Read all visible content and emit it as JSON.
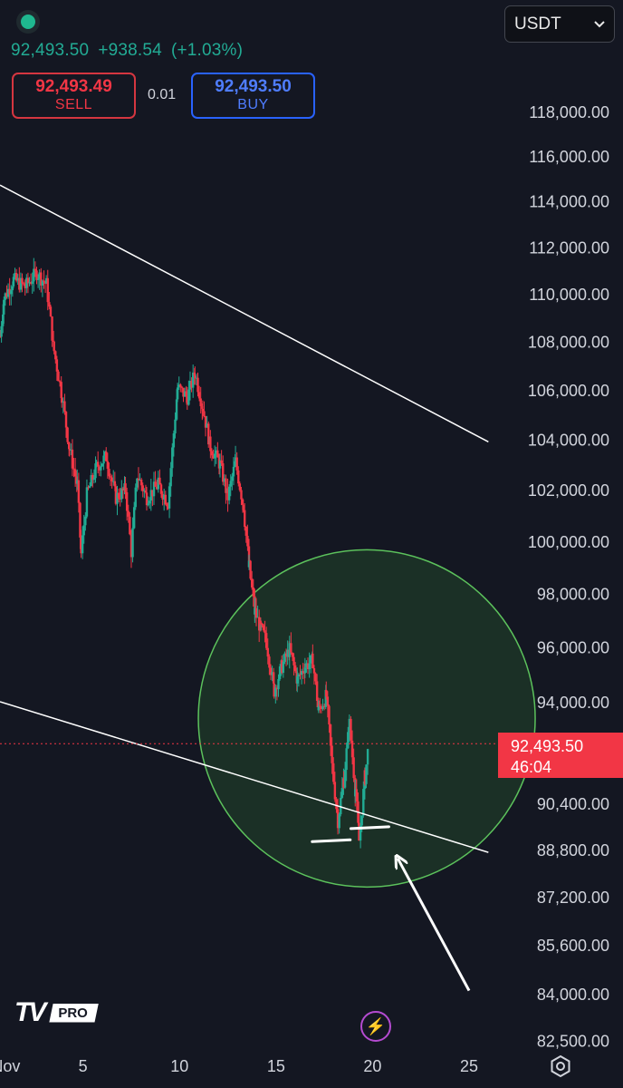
{
  "header": {
    "last_price": "92,493.50",
    "change": "+938.54",
    "change_pct": "(+1.03%)",
    "sell_price": "92,493.49",
    "sell_label": "SELL",
    "spread": "0.01",
    "buy_price": "92,493.50",
    "buy_label": "BUY",
    "currency": "USDT"
  },
  "price_tag": {
    "price": "92,493.50",
    "countdown": "46:04"
  },
  "branding": {
    "logo": "TV",
    "plan": "PRO"
  },
  "icons": {
    "symbol": "symbol-status-icon",
    "bolt": "lightning-icon",
    "settings": "settings-icon",
    "chevron": "chevron-down-icon"
  },
  "colors": {
    "up": "#22ab94",
    "down": "#f23645",
    "background": "#141722",
    "circle_fill": "#1e3a28",
    "circle_stroke": "#5cc25c",
    "annotation": "#ffffff"
  },
  "chart_data": {
    "type": "candlestick",
    "y_axis": {
      "scale": "log",
      "range": [
        82500,
        119000
      ],
      "tick_labels": [
        "118,000.00",
        "116,000.00",
        "114,000.00",
        "112,000.00",
        "110,000.00",
        "108,000.00",
        "106,000.00",
        "104,000.00",
        "102,000.00",
        "100,000.00",
        "98,000.00",
        "96,000.00",
        "94,000.00",
        "90,400.00",
        "88,800.00",
        "87,200.00",
        "85,600.00",
        "84,000.00",
        "82,500.00"
      ]
    },
    "x_axis": {
      "tick_labels": [
        "Nov",
        "5",
        "10",
        "15",
        "20",
        "25"
      ],
      "tick_days": [
        1,
        5,
        10,
        15,
        20,
        25
      ],
      "range_days": [
        0.7,
        26.5
      ]
    },
    "current_price": 92493.5,
    "price_path": [
      [
        0.7,
        108200
      ],
      [
        0.9,
        109800
      ],
      [
        1.4,
        110600
      ],
      [
        2.0,
        110300
      ],
      [
        2.6,
        110900
      ],
      [
        3.1,
        110400
      ],
      [
        3.5,
        107600
      ],
      [
        3.9,
        105800
      ],
      [
        4.3,
        103600
      ],
      [
        4.7,
        102200
      ],
      [
        4.9,
        99500
      ],
      [
        5.2,
        101800
      ],
      [
        5.7,
        102900
      ],
      [
        6.2,
        103300
      ],
      [
        6.7,
        101700
      ],
      [
        7.2,
        102000
      ],
      [
        7.5,
        99600
      ],
      [
        7.8,
        102600
      ],
      [
        8.3,
        101700
      ],
      [
        8.9,
        102200
      ],
      [
        9.4,
        101500
      ],
      [
        9.9,
        106100
      ],
      [
        10.4,
        105700
      ],
      [
        10.8,
        106700
      ],
      [
        11.2,
        105300
      ],
      [
        11.6,
        103700
      ],
      [
        12.1,
        103000
      ],
      [
        12.5,
        101700
      ],
      [
        12.9,
        103100
      ],
      [
        13.3,
        101400
      ],
      [
        13.6,
        99000
      ],
      [
        13.9,
        97300
      ],
      [
        14.2,
        96700
      ],
      [
        14.5,
        96200
      ],
      [
        14.9,
        94400
      ],
      [
        15.3,
        95300
      ],
      [
        15.7,
        95900
      ],
      [
        16.1,
        94800
      ],
      [
        16.5,
        95300
      ],
      [
        16.9,
        95500
      ],
      [
        17.2,
        93700
      ],
      [
        17.6,
        94200
      ],
      [
        17.9,
        91700
      ],
      [
        18.2,
        89800
      ],
      [
        18.5,
        91200
      ],
      [
        18.8,
        93200
      ],
      [
        19.1,
        90900
      ],
      [
        19.3,
        89100
      ],
      [
        19.6,
        91300
      ],
      [
        19.8,
        92493.5
      ]
    ],
    "drawings": {
      "upper_trendline": [
        [
          0.7,
          114700
        ],
        [
          26.0,
          103900
        ]
      ],
      "lower_trendline": [
        [
          0.7,
          94000
        ],
        [
          26.0,
          88700
        ]
      ],
      "support_marks": [
        [
          18.0,
          89100
        ],
        [
          20.0,
          89550
        ]
      ],
      "arrow": {
        "from": [
          25.0,
          84100
        ],
        "to": [
          21.3,
          88500
        ]
      },
      "highlight_circle": {
        "center": [
          19.7,
          93400
        ]
      }
    }
  }
}
